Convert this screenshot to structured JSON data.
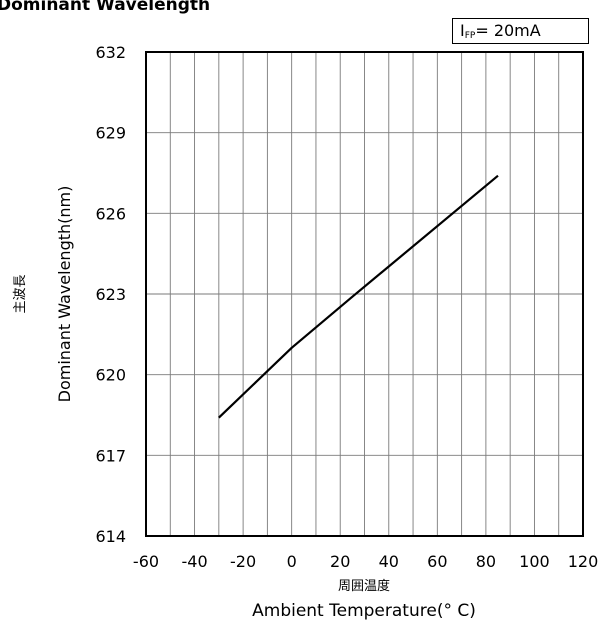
{
  "page": {
    "title": "Dominant Wavelength"
  },
  "legend": {
    "symbol": "I",
    "subscript": "FP",
    "value": "= 20mA"
  },
  "chart_data": {
    "type": "line",
    "title": "Dominant Wavelength",
    "xlabel_jp": "周囲温度",
    "xlabel": "Ambient Temperature(° C)",
    "ylabel_jp": "主波長",
    "ylabel": "Dominant Wavelength(nm)",
    "xlim": [
      -60,
      120
    ],
    "ylim": [
      614,
      632
    ],
    "xticks": [
      -60,
      -40,
      -20,
      0,
      20,
      40,
      60,
      80,
      100,
      120
    ],
    "yticks": [
      614,
      617,
      620,
      623,
      626,
      629,
      632
    ],
    "x_minor_grid_step": 10,
    "grid": true,
    "legend_position": "top-right",
    "line_color": "#000000",
    "series": [
      {
        "x": [
          -30,
          0,
          25,
          85
        ],
        "y": [
          618.4,
          621.0,
          622.9,
          627.4
        ]
      }
    ]
  }
}
